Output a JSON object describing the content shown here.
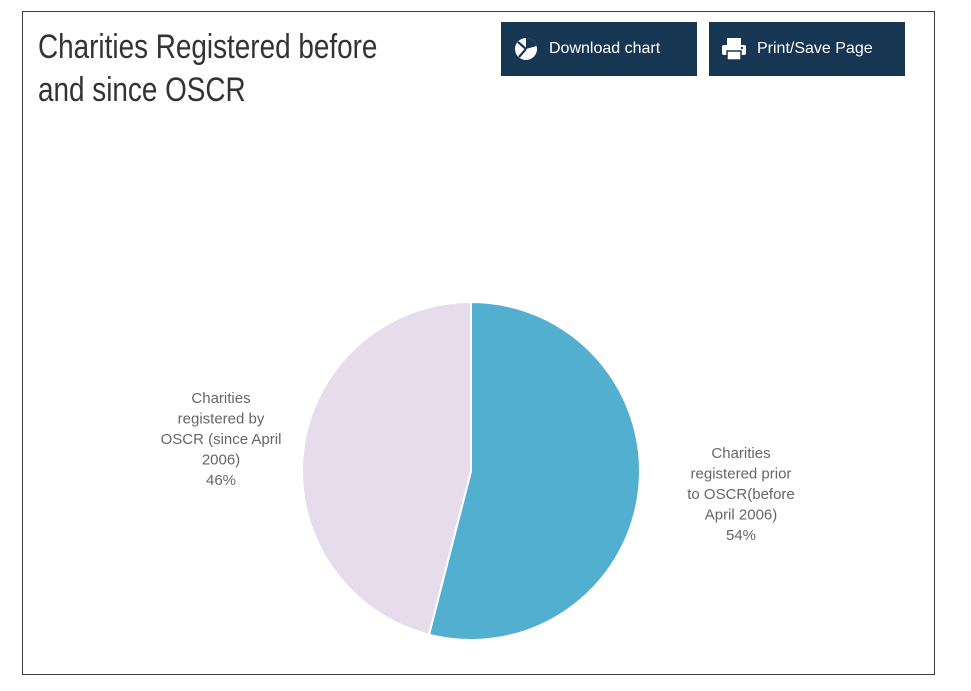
{
  "header": {
    "title": "Charities Registered before and since OSCR"
  },
  "toolbar": {
    "download_label": "Download chart",
    "download_icon": "pie-chart-icon",
    "print_label": "Print/Save Page",
    "print_icon": "printer-icon"
  },
  "colors": {
    "button_bg": "#173654",
    "slice_prior": "#52afcf",
    "slice_since": "#e6dcec",
    "label_text": "#666666"
  },
  "chart_data": {
    "type": "pie",
    "title": "Charities Registered before and since OSCR",
    "slices": [
      {
        "label_lines": [
          "Charities",
          "registered prior",
          "to OSCR(before",
          "April 2006)"
        ],
        "value": 54,
        "display": "54%",
        "color": "#52afcf"
      },
      {
        "label_lines": [
          "Charities",
          "registered by",
          "OSCR (since April",
          "2006)"
        ],
        "value": 46,
        "display": "46%",
        "color": "#e6dcec"
      }
    ]
  }
}
